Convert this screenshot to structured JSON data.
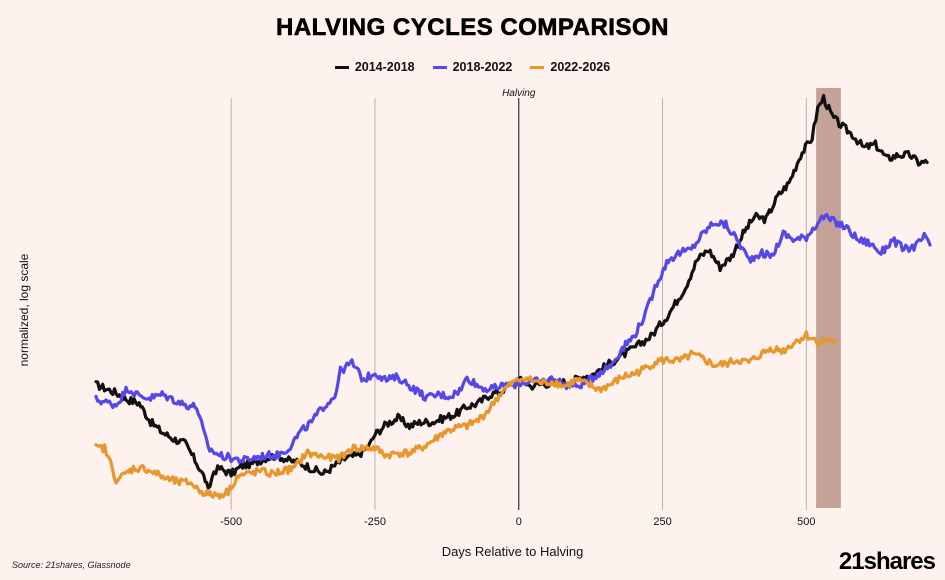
{
  "chart_data": {
    "type": "line",
    "title": "HALVING CYCLES COMPARISON",
    "xlabel": "Days Relative to Halving",
    "ylabel": "normalized, log scale",
    "xlim": [
      -735,
      715
    ],
    "xticks": [
      -500,
      -250,
      0,
      250,
      500
    ],
    "y_scale": "log",
    "grid": "vertical",
    "legend_position": "top-center",
    "annotations": [
      {
        "text": "Halving",
        "x": 0
      }
    ],
    "shaded_region": {
      "x": [
        517,
        560
      ],
      "color": "#b48c80"
    },
    "series": [
      {
        "name": "2014-2018",
        "color": "#111111",
        "points": [
          [
            -735,
            0.99
          ],
          [
            -700,
            0.94
          ],
          [
            -680,
            0.9
          ],
          [
            -660,
            0.88
          ],
          [
            -640,
            0.78
          ],
          [
            -620,
            0.73
          ],
          [
            -600,
            0.7
          ],
          [
            -580,
            0.68
          ],
          [
            -560,
            0.6
          ],
          [
            -545,
            0.54
          ],
          [
            -540,
            0.5
          ],
          [
            -530,
            0.57
          ],
          [
            -520,
            0.58
          ],
          [
            -500,
            0.56
          ],
          [
            -480,
            0.59
          ],
          [
            -460,
            0.6
          ],
          [
            -440,
            0.62
          ],
          [
            -420,
            0.63
          ],
          [
            -400,
            0.61
          ],
          [
            -380,
            0.6
          ],
          [
            -340,
            0.56
          ],
          [
            -320,
            0.59
          ],
          [
            -300,
            0.62
          ],
          [
            -280,
            0.63
          ],
          [
            -260,
            0.67
          ],
          [
            -250,
            0.72
          ],
          [
            -230,
            0.77
          ],
          [
            -210,
            0.8
          ],
          [
            -190,
            0.76
          ],
          [
            -170,
            0.78
          ],
          [
            -150,
            0.78
          ],
          [
            -130,
            0.8
          ],
          [
            -110,
            0.82
          ],
          [
            -90,
            0.86
          ],
          [
            -70,
            0.88
          ],
          [
            -50,
            0.93
          ],
          [
            -30,
            0.95
          ],
          [
            -20,
            0.98
          ],
          [
            -10,
            1.0
          ],
          [
            0,
            1.02
          ],
          [
            10,
            1.01
          ],
          [
            20,
            0.98
          ],
          [
            30,
            0.99
          ],
          [
            60,
            1.0
          ],
          [
            90,
            1.01
          ],
          [
            110,
            1.04
          ],
          [
            130,
            1.06
          ],
          [
            160,
            1.14
          ],
          [
            200,
            1.25
          ],
          [
            230,
            1.35
          ],
          [
            260,
            1.55
          ],
          [
            290,
            1.85
          ],
          [
            310,
            2.2
          ],
          [
            330,
            2.35
          ],
          [
            350,
            2.1
          ],
          [
            370,
            2.25
          ],
          [
            390,
            2.6
          ],
          [
            410,
            2.9
          ],
          [
            430,
            2.85
          ],
          [
            450,
            3.3
          ],
          [
            470,
            3.6
          ],
          [
            490,
            4.3
          ],
          [
            510,
            4.8
          ],
          [
            520,
            5.8
          ],
          [
            530,
            6.2
          ],
          [
            545,
            5.5
          ],
          [
            560,
            5.2
          ],
          [
            580,
            4.9
          ],
          [
            600,
            4.5
          ],
          [
            620,
            4.6
          ],
          [
            640,
            4.2
          ],
          [
            660,
            4.3
          ],
          [
            680,
            4.3
          ],
          [
            695,
            4.1
          ],
          [
            710,
            4.1
          ]
        ]
      },
      {
        "name": "2018-2022",
        "color": "#5648e8",
        "points": [
          [
            -735,
            0.9
          ],
          [
            -700,
            0.87
          ],
          [
            -680,
            0.97
          ],
          [
            -660,
            0.92
          ],
          [
            -640,
            0.91
          ],
          [
            -620,
            0.93
          ],
          [
            -600,
            0.9
          ],
          [
            -580,
            0.87
          ],
          [
            -560,
            0.86
          ],
          [
            -540,
            0.66
          ],
          [
            -520,
            0.63
          ],
          [
            -500,
            0.62
          ],
          [
            -480,
            0.61
          ],
          [
            -460,
            0.62
          ],
          [
            -440,
            0.63
          ],
          [
            -420,
            0.63
          ],
          [
            -400,
            0.66
          ],
          [
            -380,
            0.73
          ],
          [
            -360,
            0.78
          ],
          [
            -340,
            0.86
          ],
          [
            -320,
            0.92
          ],
          [
            -310,
            1.08
          ],
          [
            -290,
            1.14
          ],
          [
            -270,
            1.02
          ],
          [
            -250,
            1.07
          ],
          [
            -230,
            1.02
          ],
          [
            -210,
            1.04
          ],
          [
            -200,
            1.01
          ],
          [
            -180,
            0.96
          ],
          [
            -160,
            0.91
          ],
          [
            -140,
            0.93
          ],
          [
            -120,
            0.92
          ],
          [
            -100,
            0.96
          ],
          [
            -90,
            1.04
          ],
          [
            -70,
            0.98
          ],
          [
            -50,
            0.96
          ],
          [
            -30,
            0.98
          ],
          [
            -10,
            0.99
          ],
          [
            0,
            1.0
          ],
          [
            20,
            1.01
          ],
          [
            40,
            1.01
          ],
          [
            60,
            1.03
          ],
          [
            80,
            0.99
          ],
          [
            100,
            0.98
          ],
          [
            120,
            1.01
          ],
          [
            140,
            1.07
          ],
          [
            160,
            1.12
          ],
          [
            180,
            1.25
          ],
          [
            200,
            1.35
          ],
          [
            220,
            1.55
          ],
          [
            240,
            1.9
          ],
          [
            260,
            2.2
          ],
          [
            280,
            2.3
          ],
          [
            300,
            2.35
          ],
          [
            320,
            2.6
          ],
          [
            340,
            2.8
          ],
          [
            360,
            2.75
          ],
          [
            380,
            2.5
          ],
          [
            400,
            2.2
          ],
          [
            420,
            2.3
          ],
          [
            440,
            2.25
          ],
          [
            460,
            2.6
          ],
          [
            480,
            2.5
          ],
          [
            500,
            2.55
          ],
          [
            520,
            2.8
          ],
          [
            530,
            2.9
          ],
          [
            550,
            2.8
          ],
          [
            570,
            2.7
          ],
          [
            590,
            2.5
          ],
          [
            610,
            2.45
          ],
          [
            630,
            2.3
          ],
          [
            650,
            2.5
          ],
          [
            670,
            2.35
          ],
          [
            690,
            2.4
          ],
          [
            705,
            2.55
          ],
          [
            715,
            2.4
          ]
        ]
      },
      {
        "name": "2022-2026",
        "color": "#e8962e",
        "points": [
          [
            -735,
            0.66
          ],
          [
            -720,
            0.66
          ],
          [
            -710,
            0.6
          ],
          [
            -700,
            0.54
          ],
          [
            -690,
            0.55
          ],
          [
            -670,
            0.58
          ],
          [
            -650,
            0.58
          ],
          [
            -630,
            0.56
          ],
          [
            -610,
            0.54
          ],
          [
            -590,
            0.53
          ],
          [
            -570,
            0.53
          ],
          [
            -560,
            0.51
          ],
          [
            -540,
            0.49
          ],
          [
            -520,
            0.49
          ],
          [
            -505,
            0.5
          ],
          [
            -490,
            0.55
          ],
          [
            -470,
            0.56
          ],
          [
            -450,
            0.57
          ],
          [
            -430,
            0.56
          ],
          [
            -410,
            0.57
          ],
          [
            -390,
            0.58
          ],
          [
            -370,
            0.64
          ],
          [
            -350,
            0.63
          ],
          [
            -330,
            0.62
          ],
          [
            -310,
            0.62
          ],
          [
            -290,
            0.66
          ],
          [
            -270,
            0.66
          ],
          [
            -250,
            0.66
          ],
          [
            -230,
            0.63
          ],
          [
            -210,
            0.64
          ],
          [
            -190,
            0.64
          ],
          [
            -170,
            0.66
          ],
          [
            -150,
            0.69
          ],
          [
            -130,
            0.73
          ],
          [
            -110,
            0.75
          ],
          [
            -90,
            0.76
          ],
          [
            -70,
            0.79
          ],
          [
            -50,
            0.85
          ],
          [
            -40,
            0.9
          ],
          [
            -25,
            0.96
          ],
          [
            -10,
            1.0
          ],
          [
            0,
            1.02
          ],
          [
            10,
            1.04
          ],
          [
            20,
            1.02
          ],
          [
            40,
            1.0
          ],
          [
            60,
            1.01
          ],
          [
            80,
            0.98
          ],
          [
            100,
            1.02
          ],
          [
            120,
            0.99
          ],
          [
            140,
            0.96
          ],
          [
            160,
            0.99
          ],
          [
            180,
            1.04
          ],
          [
            200,
            1.06
          ],
          [
            220,
            1.1
          ],
          [
            240,
            1.15
          ],
          [
            260,
            1.16
          ],
          [
            280,
            1.15
          ],
          [
            300,
            1.2
          ],
          [
            320,
            1.17
          ],
          [
            340,
            1.12
          ],
          [
            360,
            1.13
          ],
          [
            380,
            1.16
          ],
          [
            400,
            1.14
          ],
          [
            420,
            1.2
          ],
          [
            440,
            1.25
          ],
          [
            460,
            1.23
          ],
          [
            480,
            1.3
          ],
          [
            500,
            1.36
          ],
          [
            520,
            1.3
          ],
          [
            540,
            1.32
          ],
          [
            550,
            1.3
          ]
        ]
      }
    ]
  },
  "source": "Source: 21shares, Glassnode",
  "logo_text": "21shares"
}
